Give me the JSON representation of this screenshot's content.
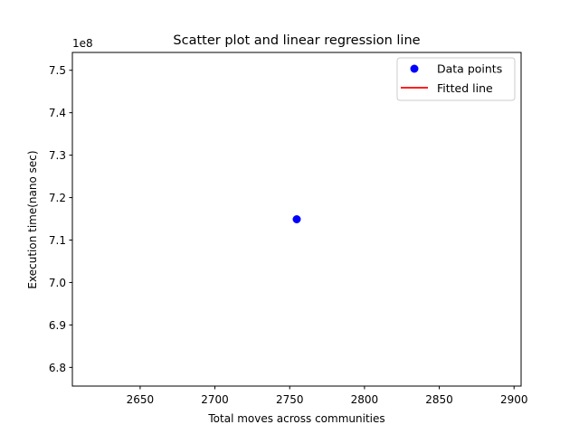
{
  "chart_data": {
    "type": "scatter",
    "title": "Scatter plot and linear regression line",
    "xlabel": "Total moves across communities",
    "ylabel": "Execution time(nano sec)",
    "y_offset_label": "1e8",
    "xlim": [
      2604.7,
      2904.7
    ],
    "ylim": [
      6.756,
      7.542
    ],
    "x_ticks": [
      2650,
      2700,
      2750,
      2800,
      2850,
      2900
    ],
    "x_tick_labels": [
      "2650",
      "2700",
      "2750",
      "2800",
      "2850",
      "2900"
    ],
    "y_ticks": [
      6.8,
      6.9,
      7.0,
      7.1,
      7.2,
      7.3,
      7.4,
      7.5
    ],
    "y_tick_labels": [
      "6.8",
      "6.9",
      "7.0",
      "7.1",
      "7.2",
      "7.3",
      "7.4",
      "7.5"
    ],
    "grid": false,
    "legend_position": "upper right",
    "series": [
      {
        "name": "Data points",
        "kind": "scatter",
        "color": "#0000ff",
        "points": [
          {
            "x": 2754.7,
            "y": 7.149
          }
        ]
      },
      {
        "name": "Fitted line",
        "kind": "line",
        "color": "#ff0000",
        "points": []
      }
    ]
  }
}
